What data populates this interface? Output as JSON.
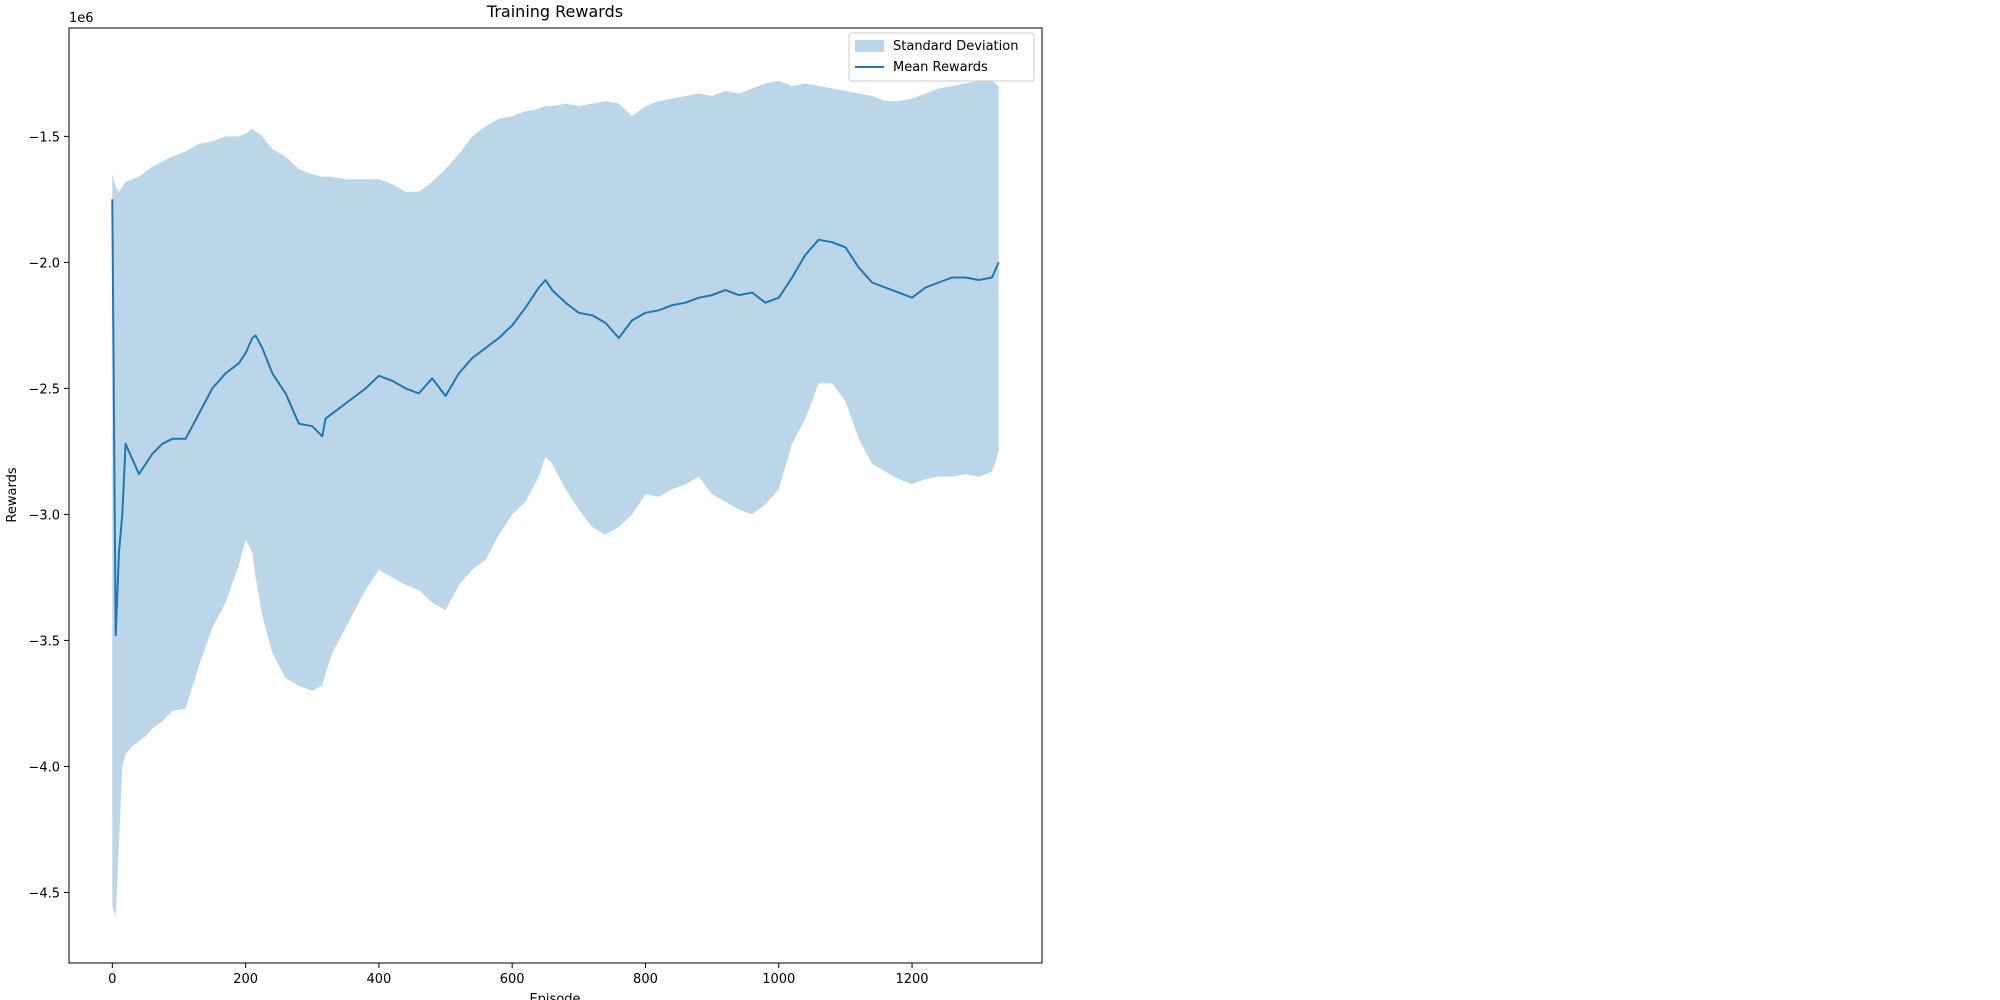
{
  "chart_data": {
    "type": "line",
    "title": "Training Rewards",
    "xlabel": "Episode",
    "ylabel": "Rewards",
    "y_offset_label": "1e6",
    "xlim": [
      -65,
      1395
    ],
    "ylim": [
      -4.78,
      -1.07
    ],
    "xticks": [
      0,
      200,
      400,
      600,
      800,
      1000,
      1200
    ],
    "xtick_labels": [
      "0",
      "200",
      "400",
      "600",
      "800",
      "1000",
      "1200"
    ],
    "yticks": [
      -1.5,
      -2.0,
      -2.5,
      -3.0,
      -3.5,
      -4.0,
      -4.5
    ],
    "ytick_labels": [
      "−1.5",
      "−2.0",
      "−2.5",
      "−3.0",
      "−3.5",
      "−4.0",
      "−4.5"
    ],
    "grid": false,
    "legend_position": "upper right",
    "legend": [
      "Standard Deviation",
      "Mean Rewards"
    ],
    "colors": {
      "mean_line": "#1f77b4",
      "std_band": "#1f77b4",
      "band_opacity": 0.3
    },
    "series": [
      {
        "name": "Mean Rewards",
        "x": [
          0,
          5,
          10,
          15,
          20,
          30,
          40,
          50,
          60,
          75,
          90,
          110,
          130,
          150,
          170,
          190,
          200,
          210,
          215,
          225,
          240,
          260,
          280,
          300,
          315,
          320,
          330,
          350,
          380,
          400,
          420,
          440,
          460,
          480,
          500,
          520,
          540,
          560,
          580,
          600,
          620,
          640,
          650,
          660,
          680,
          700,
          720,
          740,
          760,
          780,
          800,
          820,
          840,
          860,
          880,
          900,
          920,
          940,
          960,
          980,
          1000,
          1020,
          1040,
          1060,
          1080,
          1100,
          1120,
          1140,
          1160,
          1180,
          1200,
          1220,
          1240,
          1260,
          1280,
          1300,
          1320,
          1330
        ],
        "mean": [
          -1.75,
          -3.48,
          -3.15,
          -3.0,
          -2.72,
          -2.78,
          -2.84,
          -2.8,
          -2.76,
          -2.72,
          -2.7,
          -2.7,
          -2.6,
          -2.5,
          -2.44,
          -2.4,
          -2.36,
          -2.3,
          -2.29,
          -2.34,
          -2.44,
          -2.52,
          -2.64,
          -2.65,
          -2.69,
          -2.62,
          -2.6,
          -2.56,
          -2.5,
          -2.45,
          -2.47,
          -2.5,
          -2.52,
          -2.46,
          -2.53,
          -2.44,
          -2.38,
          -2.34,
          -2.3,
          -2.25,
          -2.18,
          -2.1,
          -2.07,
          -2.11,
          -2.16,
          -2.2,
          -2.21,
          -2.24,
          -2.3,
          -2.23,
          -2.2,
          -2.19,
          -2.17,
          -2.16,
          -2.14,
          -2.13,
          -2.11,
          -2.13,
          -2.12,
          -2.16,
          -2.14,
          -2.06,
          -1.97,
          -1.91,
          -1.92,
          -1.94,
          -2.02,
          -2.08,
          -2.1,
          -2.12,
          -2.14,
          -2.1,
          -2.08,
          -2.06,
          -2.06,
          -2.07,
          -2.06,
          -2.0
        ],
        "upper": [
          -1.65,
          -1.7,
          -1.72,
          -1.7,
          -1.68,
          -1.67,
          -1.66,
          -1.64,
          -1.62,
          -1.6,
          -1.58,
          -1.56,
          -1.53,
          -1.52,
          -1.5,
          -1.5,
          -1.49,
          -1.47,
          -1.48,
          -1.5,
          -1.55,
          -1.58,
          -1.63,
          -1.65,
          -1.66,
          -1.66,
          -1.66,
          -1.67,
          -1.67,
          -1.67,
          -1.69,
          -1.72,
          -1.72,
          -1.68,
          -1.63,
          -1.57,
          -1.5,
          -1.46,
          -1.43,
          -1.42,
          -1.4,
          -1.39,
          -1.38,
          -1.38,
          -1.37,
          -1.38,
          -1.37,
          -1.36,
          -1.37,
          -1.42,
          -1.38,
          -1.36,
          -1.35,
          -1.34,
          -1.33,
          -1.34,
          -1.32,
          -1.33,
          -1.31,
          -1.29,
          -1.28,
          -1.3,
          -1.29,
          -1.3,
          -1.31,
          -1.32,
          -1.33,
          -1.34,
          -1.36,
          -1.36,
          -1.35,
          -1.33,
          -1.31,
          -1.3,
          -1.29,
          -1.28,
          -1.28,
          -1.3
        ],
        "lower": [
          -4.55,
          -4.6,
          -4.3,
          -4.0,
          -3.95,
          -3.92,
          -3.9,
          -3.88,
          -3.85,
          -3.82,
          -3.78,
          -3.77,
          -3.6,
          -3.45,
          -3.35,
          -3.2,
          -3.1,
          -3.15,
          -3.25,
          -3.4,
          -3.55,
          -3.65,
          -3.68,
          -3.7,
          -3.68,
          -3.63,
          -3.55,
          -3.45,
          -3.3,
          -3.22,
          -3.25,
          -3.28,
          -3.3,
          -3.35,
          -3.38,
          -3.28,
          -3.22,
          -3.18,
          -3.08,
          -3.0,
          -2.95,
          -2.85,
          -2.77,
          -2.8,
          -2.9,
          -2.98,
          -3.05,
          -3.08,
          -3.05,
          -3.0,
          -2.92,
          -2.93,
          -2.9,
          -2.88,
          -2.85,
          -2.92,
          -2.95,
          -2.98,
          -3.0,
          -2.96,
          -2.9,
          -2.72,
          -2.62,
          -2.48,
          -2.48,
          -2.55,
          -2.7,
          -2.8,
          -2.83,
          -2.86,
          -2.88,
          -2.86,
          -2.85,
          -2.85,
          -2.84,
          -2.85,
          -2.83,
          -2.75
        ]
      }
    ]
  }
}
